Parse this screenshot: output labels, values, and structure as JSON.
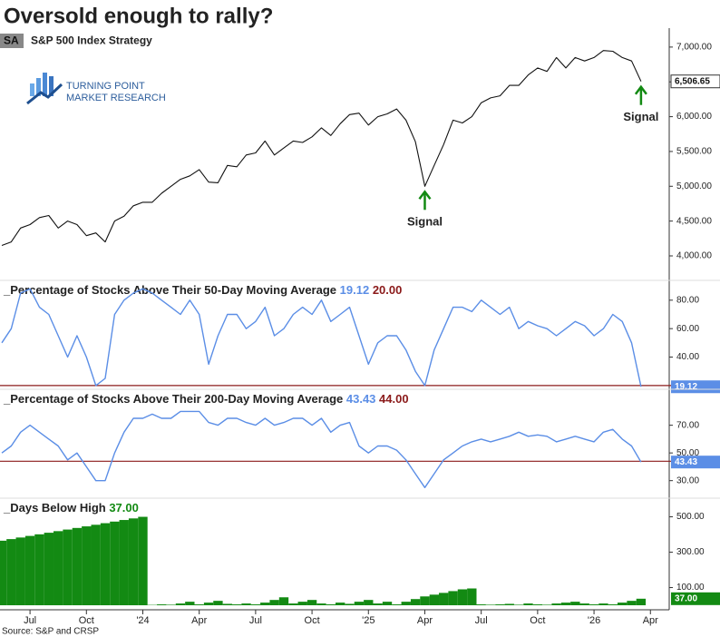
{
  "title": "Oversold enough to rally?",
  "source": "Source: S&P and CRSP",
  "logo": {
    "line1": "TURNING POINT",
    "line2": "MARKET RESEARCH"
  },
  "chart_data": [
    {
      "type": "line",
      "badge": "SA",
      "title": "S&P 500 Index  Strategy",
      "xlim": [
        0,
        71
      ],
      "ylim": [
        3700,
        7220
      ],
      "yticks": [
        {
          "value": 4000,
          "label": "4,000.00"
        },
        {
          "value": 4500,
          "label": "4,500.00"
        },
        {
          "value": 5000,
          "label": "5,000.00"
        },
        {
          "value": 5500,
          "label": "5,500.00"
        },
        {
          "value": 6000,
          "label": "6,000.00"
        },
        {
          "value": 6500,
          "label": "6,500.00"
        },
        {
          "value": 7000,
          "label": "7,000.00"
        }
      ],
      "series": [
        {
          "color": "#111111",
          "last_label": "6,506.65",
          "values": [
            4150,
            4200,
            4400,
            4450,
            4550,
            4580,
            4400,
            4500,
            4450,
            4290,
            4330,
            4200,
            4500,
            4570,
            4720,
            4770,
            4770,
            4900,
            5000,
            5100,
            5150,
            5240,
            5060,
            5050,
            5300,
            5280,
            5450,
            5480,
            5650,
            5450,
            5550,
            5650,
            5630,
            5710,
            5840,
            5730,
            5900,
            6030,
            6050,
            5880,
            6000,
            6040,
            6110,
            5950,
            5640,
            5000,
            5300,
            5600,
            5950,
            5910,
            6000,
            6200,
            6270,
            6300,
            6450,
            6450,
            6600,
            6700,
            6650,
            6850,
            6700,
            6850,
            6800,
            6850,
            6950,
            6940,
            6850,
            6800,
            6506.65
          ]
        }
      ],
      "annotations": [
        {
          "x": 45,
          "text": "Signal",
          "color": "#138a13"
        },
        {
          "x": 68,
          "text": "Signal",
          "color": "#138a13"
        }
      ]
    },
    {
      "type": "line",
      "title": "_Percentage of Stocks Above Their 50-Day Moving Average",
      "xlim": [
        0,
        71
      ],
      "ylim": [
        18,
        92
      ],
      "yticks": [
        {
          "value": 40,
          "label": "40.00"
        },
        {
          "value": 60,
          "label": "60.00"
        },
        {
          "value": 80,
          "label": "80.00"
        }
      ],
      "series": [
        {
          "color": "#5b8ee6",
          "last_label": "19.12",
          "values": [
            50,
            60,
            85,
            88,
            75,
            70,
            55,
            40,
            55,
            40,
            20,
            25,
            70,
            80,
            85,
            88,
            85,
            80,
            75,
            70,
            80,
            70,
            35,
            55,
            70,
            70,
            60,
            65,
            75,
            55,
            60,
            70,
            75,
            70,
            80,
            65,
            70,
            75,
            55,
            35,
            50,
            55,
            55,
            45,
            30,
            20,
            45,
            60,
            75,
            75,
            72,
            80,
            75,
            70,
            75,
            60,
            65,
            62,
            60,
            55,
            60,
            65,
            62,
            55,
            60,
            70,
            65,
            50,
            19.12
          ]
        }
      ],
      "reference_line": {
        "value": 20,
        "label": "20.00",
        "color": "#8b1a1a"
      }
    },
    {
      "type": "line",
      "title": "_Percentage of Stocks Above Their 200-Day Moving Average",
      "xlim": [
        0,
        71
      ],
      "ylim": [
        18,
        94
      ],
      "yticks": [
        {
          "value": 30,
          "label": "30.00"
        },
        {
          "value": 50,
          "label": "50.00"
        },
        {
          "value": 70,
          "label": "70.00"
        }
      ],
      "series": [
        {
          "color": "#5b8ee6",
          "last_label": "43.43",
          "values": [
            50,
            55,
            65,
            70,
            65,
            60,
            55,
            45,
            50,
            40,
            30,
            30,
            50,
            65,
            75,
            75,
            78,
            75,
            75,
            80,
            80,
            80,
            72,
            70,
            75,
            75,
            72,
            70,
            75,
            70,
            72,
            75,
            75,
            70,
            75,
            65,
            70,
            72,
            55,
            50,
            55,
            55,
            52,
            45,
            35,
            25,
            35,
            45,
            50,
            55,
            58,
            60,
            58,
            60,
            62,
            65,
            62,
            63,
            62,
            58,
            60,
            62,
            60,
            58,
            65,
            67,
            60,
            55,
            43.43
          ]
        }
      ],
      "reference_line": {
        "value": 44,
        "label": "44.00",
        "color": "#8b1a1a"
      }
    },
    {
      "type": "bar",
      "title": "_Days Below High",
      "xlim": [
        0,
        71
      ],
      "ylim": [
        -5,
        590
      ],
      "yticks": [
        {
          "value": 100,
          "label": "100.00"
        },
        {
          "value": 300,
          "label": "300.00"
        },
        {
          "value": 500,
          "label": "500.00"
        }
      ],
      "series": [
        {
          "color": "#138a13",
          "last_label": "37.00",
          "values": [
            365,
            374,
            383,
            392,
            401,
            410,
            419,
            428,
            437,
            446,
            455,
            464,
            473,
            482,
            491,
            500,
            2,
            5,
            3,
            10,
            20,
            5,
            15,
            25,
            8,
            5,
            10,
            5,
            15,
            30,
            45,
            10,
            20,
            30,
            10,
            5,
            15,
            8,
            20,
            30,
            10,
            20,
            5,
            20,
            35,
            50,
            60,
            70,
            80,
            90,
            95,
            5,
            3,
            5,
            8,
            3,
            10,
            5,
            3,
            10,
            15,
            20,
            10,
            5,
            10,
            5,
            15,
            25,
            37
          ]
        }
      ],
      "xticks": [
        {
          "value": 3,
          "label": "Jul"
        },
        {
          "value": 9,
          "label": "Oct"
        },
        {
          "value": 15,
          "label": "'24"
        },
        {
          "value": 21,
          "label": "Apr"
        },
        {
          "value": 27,
          "label": "Jul"
        },
        {
          "value": 33,
          "label": "Oct"
        },
        {
          "value": 39,
          "label": "'25"
        },
        {
          "value": 45,
          "label": "Apr"
        },
        {
          "value": 51,
          "label": "Jul"
        },
        {
          "value": 57,
          "label": "Oct"
        },
        {
          "value": 63,
          "label": "'26"
        },
        {
          "value": 69,
          "label": "Apr"
        }
      ]
    }
  ]
}
